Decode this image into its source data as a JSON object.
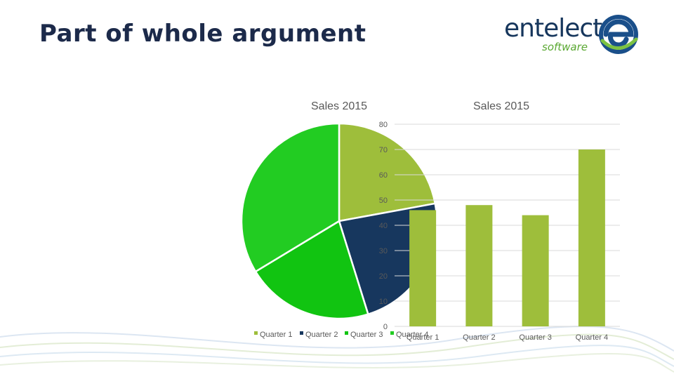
{
  "slide": {
    "title": "Part of whole argument"
  },
  "logo": {
    "word": "entelect",
    "sub": "software"
  },
  "colors": {
    "quarter_1": "#9ebe3b",
    "quarter_2": "#17375e",
    "quarter_3": "#11c411",
    "quarter_4": "#22cc22",
    "bar": "#9ebe3b",
    "grid": "#d9d9d9",
    "axis_text": "#595959",
    "title_text": "#1c2a4a"
  },
  "chart_data": [
    {
      "type": "pie",
      "title": "Sales 2015",
      "categories": [
        "Quarter 1",
        "Quarter 2",
        "Quarter 3",
        "Quarter 4"
      ],
      "values": [
        46,
        48,
        44,
        70
      ],
      "legend": "bottom"
    },
    {
      "type": "bar",
      "title": "Sales 2015",
      "categories": [
        "Quarter 1",
        "Quarter 2",
        "Quarter 3",
        "Quarter 4"
      ],
      "values": [
        46,
        48,
        44,
        70
      ],
      "ylim": [
        0,
        80
      ],
      "yticks": [
        0,
        10,
        20,
        30,
        40,
        50,
        60,
        70,
        80
      ],
      "grid": true,
      "legend": "none"
    }
  ]
}
